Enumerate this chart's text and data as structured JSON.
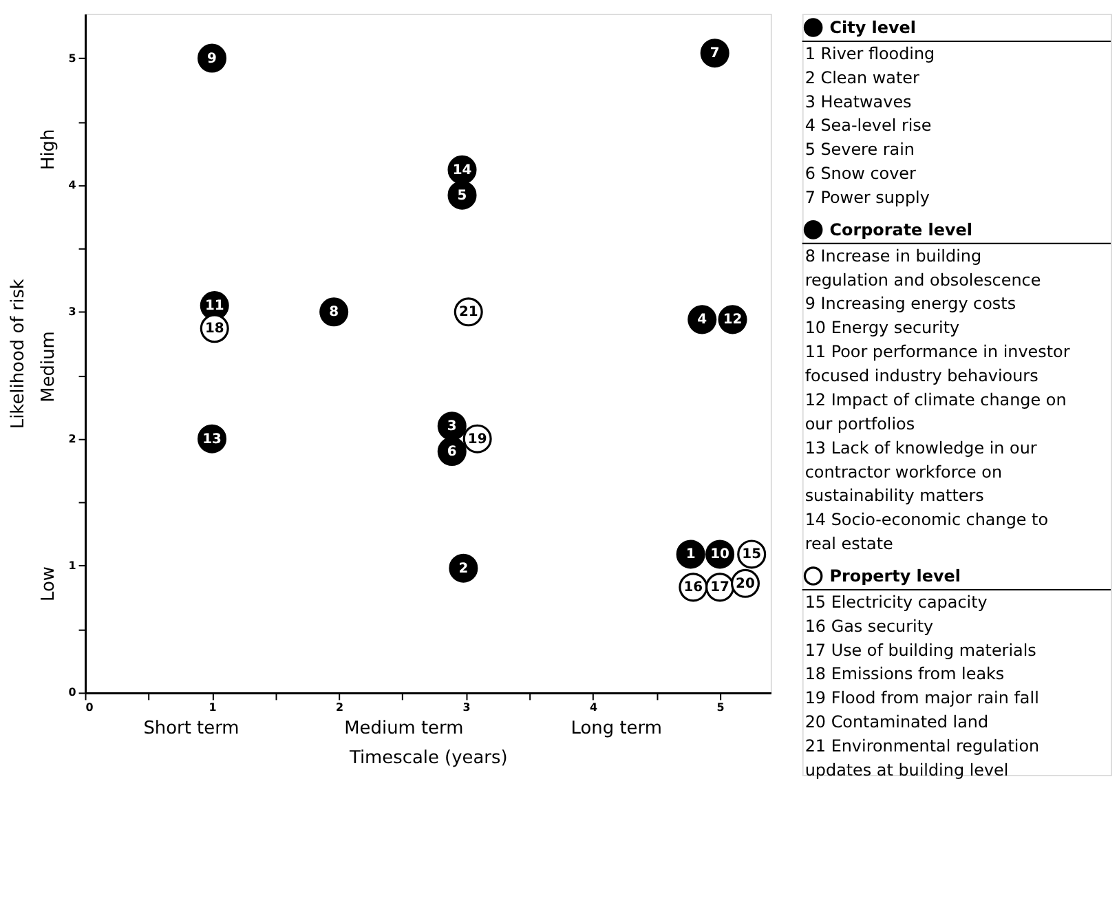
{
  "chart_data": {
    "type": "scatter",
    "xlabel": "Timescale (years)",
    "ylabel": "Likelihood of risk",
    "xlim": [
      0,
      5.4
    ],
    "ylim": [
      0,
      5.35
    ],
    "xticks": [
      0,
      {
        "value": 0.5,
        "label": null
      },
      1,
      {
        "value": 1.5,
        "label": null
      },
      2,
      {
        "value": 2.5,
        "label": null
      },
      3,
      {
        "value": 3.5,
        "label": null
      },
      4,
      {
        "value": 4.5,
        "label": null
      },
      5
    ],
    "yticks": [
      0,
      {
        "value": 0.5,
        "label": null
      },
      1,
      {
        "value": 1.5,
        "label": null
      },
      2,
      {
        "value": 2.5,
        "label": null
      },
      3,
      {
        "value": 3.5,
        "label": null
      },
      4,
      {
        "value": 4.5,
        "label": null
      },
      5
    ],
    "grid": false,
    "legend": "right",
    "marker": "circle",
    "series": [
      {
        "name": "City level",
        "color": "#000000",
        "x": [
          4.77,
          2.98,
          2.89,
          4.86,
          2.97,
          2.89,
          4.96
        ],
        "values": [
          1.09,
          0.98,
          2.1,
          2.94,
          3.92,
          1.9,
          5.04
        ]
      },
      {
        "name": "Corporate level",
        "color": "#000000",
        "x": [
          1.96,
          1.0,
          5.0,
          1.02,
          5.1,
          1.0,
          2.97
        ],
        "values": [
          3.0,
          5.0,
          1.09,
          3.05,
          2.94,
          2.0,
          4.12
        ]
      },
      {
        "name": "Property level",
        "color": "#ffffff",
        "x": [
          5.25,
          4.79,
          5.0,
          1.02,
          3.09,
          5.2,
          3.02
        ],
        "values": [
          1.09,
          0.83,
          0.83,
          2.87,
          2.0,
          0.86,
          3.0
        ]
      }
    ],
    "annotations": [
      "Short term",
      "Medium term",
      "Long term",
      "Low",
      "Medium",
      "High",
      {
        "text": "1",
        "x": 4.77,
        "y": 1.09
      },
      {
        "text": "2",
        "x": 2.98,
        "y": 0.98
      },
      {
        "text": "3",
        "x": 2.89,
        "y": 2.1
      },
      {
        "text": "4",
        "x": 4.86,
        "y": 2.94
      },
      {
        "text": "5",
        "x": 2.97,
        "y": 3.92
      },
      {
        "text": "6",
        "x": 2.89,
        "y": 1.9
      },
      {
        "text": "7",
        "x": 4.96,
        "y": 5.04
      },
      {
        "text": "8",
        "x": 1.96,
        "y": 3.0
      },
      {
        "text": "9",
        "x": 1.0,
        "y": 5.0
      },
      {
        "text": "10",
        "x": 5.0,
        "y": 1.09
      },
      {
        "text": "11",
        "x": 1.02,
        "y": 3.05
      },
      {
        "text": "12",
        "x": 5.1,
        "y": 2.94
      },
      {
        "text": "13",
        "x": 1.0,
        "y": 2.0
      },
      {
        "text": "14",
        "x": 2.97,
        "y": 4.12
      },
      {
        "text": "15",
        "x": 5.25,
        "y": 1.09
      },
      {
        "text": "16",
        "x": 4.79,
        "y": 0.83
      },
      {
        "text": "17",
        "x": 5.0,
        "y": 0.83
      },
      {
        "text": "18",
        "x": 1.02,
        "y": 2.87
      },
      {
        "text": "19",
        "x": 3.09,
        "y": 2.0
      },
      {
        "text": "20",
        "x": 5.2,
        "y": 0.86
      },
      {
        "text": "21",
        "x": 3.02,
        "y": 3.0
      },
      "1 River flooding",
      "2 Clean water",
      "3 Heatwaves",
      "4 Sea-level rise",
      "5 Severe rain",
      "6 Snow cover",
      "7 Power supply",
      "8 Increase in building regulation and obsolescence",
      "9 Increasing energy costs",
      "10 Energy security",
      "11 Poor performance in investor focused industry behaviours",
      "12 Impact of climate change on our portfolios",
      "13 Lack of knowledge in our contractor workforce on sustainability matters",
      "14 Socio-economic change to real estate",
      "15 Electricity capacity",
      "16 Gas security",
      "17 Use of building materials",
      "18 Emissions from leaks",
      "19 Flood from major rain fall",
      "20 Contaminated land",
      "21 Environmental regulation updates at building level"
    ]
  }
}
